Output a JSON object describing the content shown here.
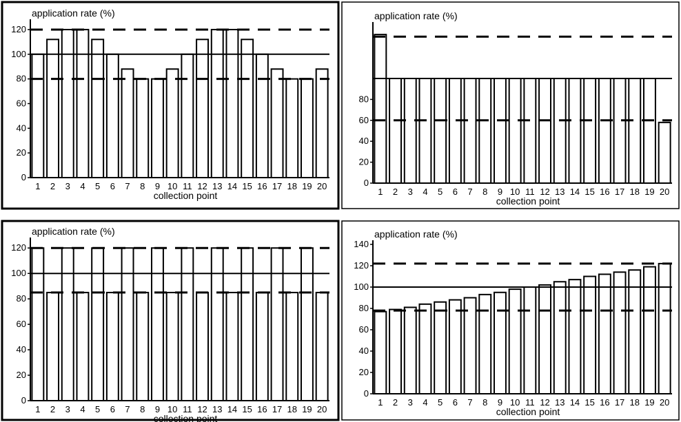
{
  "chart_data": [
    {
      "type": "bar",
      "title": "",
      "ylabel": "application rate (%)",
      "xlabel": "collection point",
      "categories": [
        "1",
        "2",
        "3",
        "4",
        "5",
        "6",
        "7",
        "8",
        "9",
        "10",
        "11",
        "12",
        "13",
        "14",
        "15",
        "16",
        "17",
        "18",
        "19",
        "20"
      ],
      "values": [
        100,
        112,
        120,
        120,
        112,
        100,
        88,
        80,
        80,
        88,
        100,
        112,
        120,
        120,
        112,
        100,
        88,
        80,
        80,
        88
      ],
      "ylim": [
        0,
        125
      ],
      "yticks": [
        "0",
        "20",
        "40",
        "60",
        "80",
        "100",
        "120"
      ],
      "reference_lines": [
        {
          "value": 120,
          "style": "dashed"
        },
        {
          "value": 100,
          "style": "solid"
        },
        {
          "value": 80,
          "style": "dashed"
        }
      ],
      "grid": false
    },
    {
      "type": "bar",
      "title": "",
      "ylabel": "application rate (%)",
      "xlabel": "collection point",
      "categories": [
        "1",
        "2",
        "3",
        "4",
        "5",
        "6",
        "7",
        "8",
        "9",
        "10",
        "11",
        "12",
        "13",
        "14",
        "15",
        "16",
        "17",
        "18",
        "19",
        "20"
      ],
      "values": [
        142,
        100,
        100,
        100,
        100,
        100,
        100,
        100,
        100,
        100,
        100,
        100,
        100,
        100,
        100,
        100,
        100,
        100,
        100,
        58
      ],
      "ylim": [
        0,
        150
      ],
      "yticks": [
        "0",
        "20",
        "40",
        "60",
        "80"
      ],
      "reference_lines": [
        {
          "value": 140,
          "style": "dashed"
        },
        {
          "value": 100,
          "style": "solid"
        },
        {
          "value": 60,
          "style": "dashed"
        }
      ],
      "grid": false
    },
    {
      "type": "bar",
      "title": "",
      "ylabel": "application rate (%)",
      "xlabel": "collection point",
      "categories": [
        "1",
        "2",
        "3",
        "4",
        "5",
        "6",
        "7",
        "8",
        "9",
        "10",
        "11",
        "12",
        "13",
        "14",
        "15",
        "16",
        "17",
        "18",
        "19",
        "20"
      ],
      "values": [
        120,
        85,
        120,
        85,
        120,
        85,
        120,
        85,
        120,
        85,
        120,
        85,
        120,
        85,
        120,
        85,
        120,
        85,
        120,
        85
      ],
      "ylim": [
        0,
        125
      ],
      "yticks": [
        "0",
        "20",
        "40",
        "60",
        "80",
        "100",
        "120"
      ],
      "reference_lines": [
        {
          "value": 120,
          "style": "dashed"
        },
        {
          "value": 100,
          "style": "solid"
        },
        {
          "value": 85,
          "style": "dashed"
        }
      ],
      "grid": false
    },
    {
      "type": "bar",
      "title": "",
      "ylabel": "application rate (%)",
      "xlabel": "collection point",
      "categories": [
        "1",
        "2",
        "3",
        "4",
        "5",
        "6",
        "7",
        "8",
        "9",
        "10",
        "11",
        "12",
        "13",
        "14",
        "15",
        "16",
        "17",
        "18",
        "19",
        "20"
      ],
      "values": [
        77,
        79,
        81,
        84,
        86,
        88,
        90,
        93,
        95,
        98,
        100,
        102,
        105,
        107,
        110,
        112,
        114,
        116,
        119,
        122
      ],
      "ylim": [
        0,
        140
      ],
      "yticks": [
        "0",
        "20",
        "40",
        "60",
        "80",
        "100",
        "120",
        "140"
      ],
      "reference_lines": [
        {
          "value": 122,
          "style": "dashed"
        },
        {
          "value": 100,
          "style": "solid"
        },
        {
          "value": 78,
          "style": "dashed"
        }
      ],
      "grid": false
    }
  ]
}
